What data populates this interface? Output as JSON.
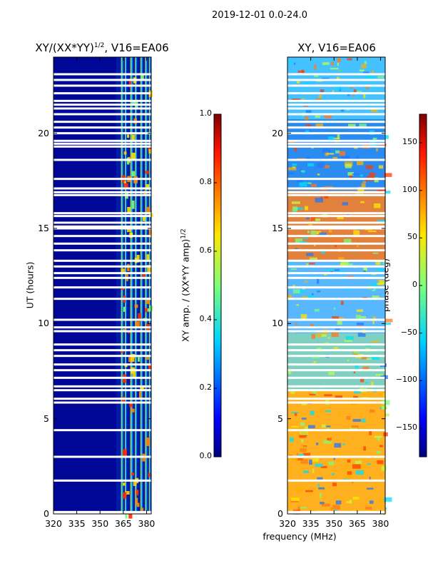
{
  "suptitle": "2019-12-01 0.0-24.0",
  "chart_data": [
    {
      "type": "heatmap",
      "title": "XY/(XX*YY)^1/2, V16=EA06",
      "title_main": "XY/(XX*YY)",
      "title_sup": "1/2",
      "title_tail": ", V16=EA06",
      "xlabel": "",
      "ylabel": "UT (hours)",
      "xlim": [
        320,
        383
      ],
      "ylim": [
        0,
        24
      ],
      "xticks": [
        320,
        335,
        350,
        365,
        380
      ],
      "yticks": [
        0,
        5,
        10,
        15,
        20
      ],
      "colorbar": {
        "label": "XY amp. / (XX*YY amp)^1/2",
        "label_main": "XY amp. / (XX*YY amp)",
        "label_sup": "1/2",
        "range": [
          0.0,
          1.0
        ],
        "ticks": [
          "0.0",
          "0.2",
          "0.4",
          "0.6",
          "0.8",
          "1.0"
        ]
      }
    },
    {
      "type": "heatmap",
      "title": "XY, V16=EA06",
      "xlabel": "frequency (MHz)",
      "ylabel": "",
      "xlim": [
        320,
        383
      ],
      "ylim": [
        0,
        24
      ],
      "xticks": [
        320,
        335,
        350,
        365,
        380
      ],
      "yticks": [
        0,
        5,
        10,
        15,
        20
      ],
      "colorbar": {
        "label": "phase (deg)",
        "range": [
          -180,
          180
        ],
        "ticks": [
          "150",
          "100",
          "50",
          "0",
          "−50",
          "−100",
          "−150"
        ]
      }
    }
  ],
  "flag_rows_hours": [
    0.05,
    0.1,
    1.75,
    3.0,
    4.4,
    5.85,
    6.05,
    6.5,
    6.7,
    7.15,
    7.55,
    7.85,
    8.3,
    8.6,
    8.9,
    9.6,
    9.8,
    10.2,
    11.3,
    11.9,
    12.4,
    12.65,
    13.0,
    13.3,
    13.85,
    14.2,
    14.6,
    15.0,
    15.1,
    15.3,
    15.65,
    15.8,
    16.75,
    16.9,
    17.1,
    17.6,
    18.6,
    19.3,
    19.45,
    19.6,
    20.0,
    20.3,
    20.6,
    21.0,
    21.3,
    21.5,
    21.7,
    22.1,
    22.5,
    22.8,
    23.1
  ]
}
